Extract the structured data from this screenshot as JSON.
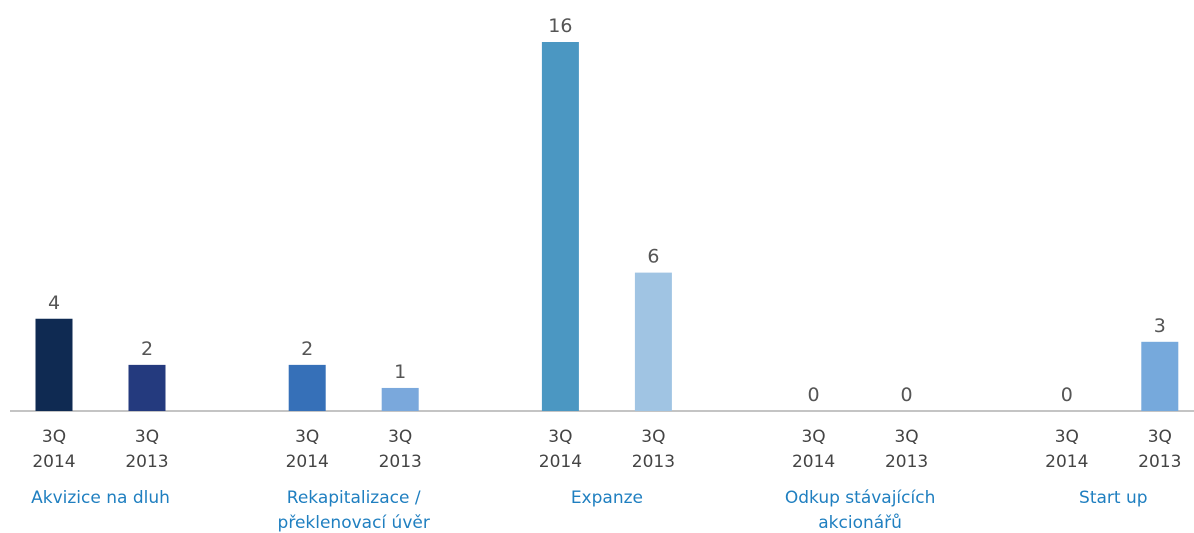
{
  "chart_data": {
    "type": "bar",
    "categories": [
      "Akvizice na dluh",
      "Rekapitalizace /\npřeklenovací úvěr",
      "Expanze",
      "Odkup stávajících\nakcionářů",
      "Start up"
    ],
    "series": [
      {
        "name": "3Q\n2014",
        "values": [
          4,
          2,
          16,
          0,
          0
        ],
        "colors": [
          "#0f2a52",
          "#3670b8",
          "#4b97c2",
          "#3670b8",
          "#3670b8"
        ]
      },
      {
        "name": "3Q\n2013",
        "values": [
          2,
          1,
          6,
          0,
          3
        ],
        "colors": [
          "#243a7e",
          "#7aa8dc",
          "#a0c4e3",
          "#7aa8dc",
          "#76a9dc"
        ]
      }
    ],
    "ylim": [
      0,
      16
    ]
  }
}
